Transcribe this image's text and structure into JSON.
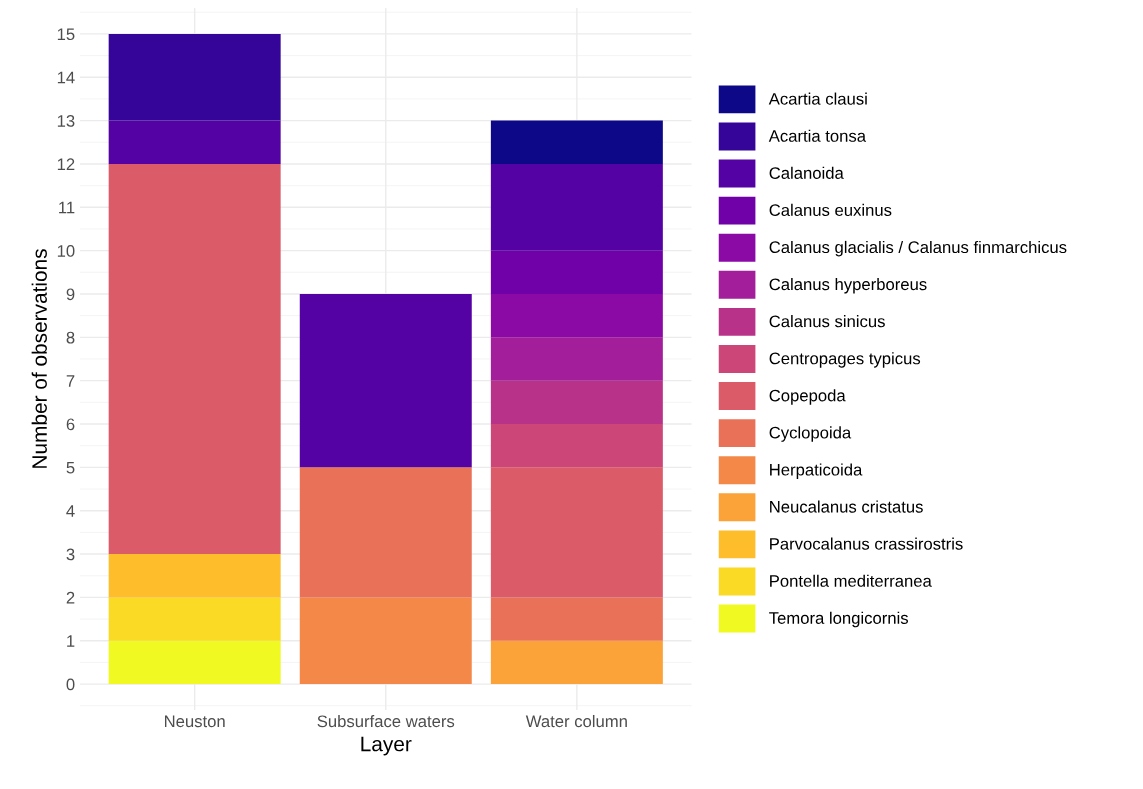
{
  "chart_data": {
    "type": "bar",
    "stacked": true,
    "xlabel": "Layer",
    "ylabel": "Number of observations",
    "categories": [
      "Neuston",
      "Subsurface waters",
      "Water column"
    ],
    "ylim": [
      -0.6,
      15.6
    ],
    "yticks": [
      0,
      1,
      2,
      3,
      4,
      5,
      6,
      7,
      8,
      9,
      10,
      11,
      12,
      13,
      14,
      15
    ],
    "grid": true,
    "legend": "right",
    "series": [
      {
        "name": "Temora longicornis",
        "color": "#f0f921",
        "values": [
          1,
          null,
          null
        ]
      },
      {
        "name": "Pontella mediterranea",
        "color": "#fada24",
        "values": [
          1,
          null,
          null
        ]
      },
      {
        "name": "Parvocalanus crassirostris",
        "color": "#febd2a",
        "values": [
          1,
          null,
          null
        ]
      },
      {
        "name": "Neucalanus cristatus",
        "color": "#fba238",
        "values": [
          null,
          null,
          1
        ]
      },
      {
        "name": "Herpaticoida",
        "color": "#f48849",
        "values": [
          null,
          2,
          null
        ]
      },
      {
        "name": "Cyclopoida",
        "color": "#e97158",
        "values": [
          null,
          3,
          1
        ]
      },
      {
        "name": "Copepoda",
        "color": "#db5c68",
        "values": [
          9,
          null,
          3
        ]
      },
      {
        "name": "Centropages typicus",
        "color": "#cc4778",
        "values": [
          null,
          null,
          1
        ]
      },
      {
        "name": "Calanus sinicus",
        "color": "#b93289",
        "values": [
          null,
          null,
          1
        ]
      },
      {
        "name": "Calanus hyperboreus",
        "color": "#a31e9a",
        "values": [
          null,
          null,
          1
        ]
      },
      {
        "name": "Calanus glacialis / Calanus finmarchicus",
        "color": "#8b0aa5",
        "values": [
          null,
          null,
          1
        ]
      },
      {
        "name": "Calanus euxinus",
        "color": "#7000a8",
        "values": [
          null,
          null,
          1
        ]
      },
      {
        "name": "Calanoida",
        "color": "#5402a3",
        "values": [
          1,
          4,
          2
        ]
      },
      {
        "name": "Acartia tonsa",
        "color": "#350498",
        "values": [
          2,
          null,
          null
        ]
      },
      {
        "name": "Acartia clausi",
        "color": "#0d0887",
        "values": [
          null,
          null,
          1
        ]
      }
    ]
  }
}
